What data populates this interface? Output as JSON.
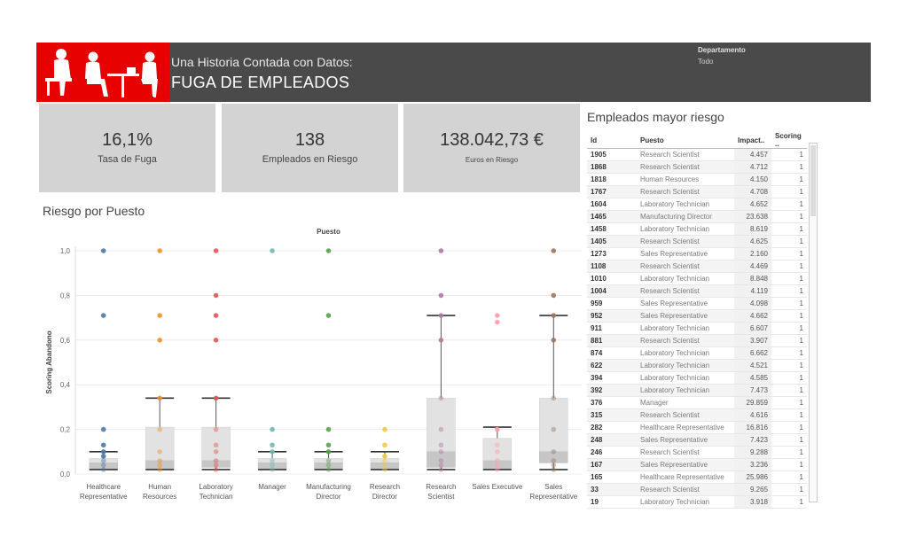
{
  "header": {
    "subtitle": "Una Historia Contada con Datos:",
    "title": "FUGA DE EMPLEADOS",
    "filter_label": "Departamento",
    "filter_value": "Todo",
    "colors": {
      "logo_bg": "#e60000",
      "header_bg": "#4a4a4a"
    },
    "logo_icon": "office-people-icon"
  },
  "kpis": [
    {
      "value": "16,1%",
      "label": "Tasa de Fuga"
    },
    {
      "value": "138",
      "label": "Empleados en Riesgo"
    },
    {
      "value": "138.042,73 €",
      "label": "Euros en Riesgo"
    }
  ],
  "chart_title": "Riesgo por Puesto",
  "chart_data": {
    "type": "boxplot-jitter",
    "x_header": "Puesto",
    "ylabel": "Scoring Abandono",
    "ylim": [
      0,
      1
    ],
    "yticks": [
      "0,0",
      "0,2",
      "0,4",
      "0,6",
      "0,8",
      "1,0"
    ],
    "grid": true,
    "categories": [
      {
        "label": [
          "Healthcare",
          "Representative"
        ],
        "color": "#4e79a7",
        "box": {
          "min": 0.02,
          "q1": 0.02,
          "median": 0.05,
          "q3": 0.07,
          "max": 0.1
        },
        "points": [
          1.0,
          0.71,
          0.2,
          0.13,
          0.1,
          0.08,
          0.06,
          0.04,
          0.02
        ]
      },
      {
        "label": [
          "Human",
          "Resources"
        ],
        "color": "#f28e2b",
        "box": {
          "min": 0.02,
          "q1": 0.02,
          "median": 0.06,
          "q3": 0.21,
          "max": 0.34
        },
        "points": [
          1.0,
          0.71,
          0.6,
          0.34,
          0.2,
          0.1,
          0.06,
          0.04,
          0.02
        ]
      },
      {
        "label": [
          "Laboratory",
          "Technician"
        ],
        "color": "#e15759",
        "box": {
          "min": 0.02,
          "q1": 0.03,
          "median": 0.06,
          "q3": 0.21,
          "max": 0.34
        },
        "points": [
          1.0,
          0.8,
          0.71,
          0.6,
          0.34,
          0.2,
          0.13,
          0.1,
          0.06,
          0.04,
          0.02
        ]
      },
      {
        "label": [
          "Manager",
          ""
        ],
        "color": "#76b7b2",
        "box": {
          "min": 0.02,
          "q1": 0.02,
          "median": 0.05,
          "q3": 0.07,
          "max": 0.1
        },
        "points": [
          1.0,
          0.2,
          0.13,
          0.1,
          0.06,
          0.04,
          0.02
        ]
      },
      {
        "label": [
          "Manufacturing",
          "Director"
        ],
        "color": "#59a14f",
        "box": {
          "min": 0.02,
          "q1": 0.02,
          "median": 0.05,
          "q3": 0.07,
          "max": 0.1
        },
        "points": [
          1.0,
          0.71,
          0.2,
          0.13,
          0.1,
          0.06,
          0.04,
          0.02
        ]
      },
      {
        "label": [
          "Research",
          "Director"
        ],
        "color": "#edc948",
        "box": {
          "min": 0.02,
          "q1": 0.02,
          "median": 0.05,
          "q3": 0.07,
          "max": 0.1
        },
        "points": [
          0.2,
          0.13,
          0.08,
          0.06,
          0.04,
          0.02
        ]
      },
      {
        "label": [
          "Research",
          "Scientist"
        ],
        "color": "#b07aa1",
        "box": {
          "min": 0.02,
          "q1": 0.03,
          "median": 0.1,
          "q3": 0.34,
          "max": 0.71
        },
        "points": [
          1.0,
          0.8,
          0.71,
          0.6,
          0.34,
          0.2,
          0.13,
          0.1,
          0.06,
          0.04,
          0.02
        ]
      },
      {
        "label": [
          "Sales Executive",
          ""
        ],
        "color": "#ff9da7",
        "box": {
          "min": 0.02,
          "q1": 0.02,
          "median": 0.06,
          "q3": 0.16,
          "max": 0.21
        },
        "points": [
          0.71,
          0.68,
          0.2,
          0.13,
          0.1,
          0.06,
          0.04,
          0.02
        ]
      },
      {
        "label": [
          "Sales",
          "Representative"
        ],
        "color": "#9c755f",
        "box": {
          "min": 0.02,
          "q1": 0.05,
          "median": 0.1,
          "q3": 0.34,
          "max": 0.71
        },
        "points": [
          1.0,
          0.8,
          0.71,
          0.6,
          0.34,
          0.2,
          0.1,
          0.06,
          0.04,
          0.02
        ]
      }
    ]
  },
  "table": {
    "title": "Empleados mayor riesgo",
    "columns": [
      "Id",
      "Puesto",
      "Impact..",
      "Scoring .."
    ],
    "rows": [
      [
        "1905",
        "Research Scientist",
        "4.457",
        "1"
      ],
      [
        "1868",
        "Research Scientist",
        "4.712",
        "1"
      ],
      [
        "1818",
        "Human Resources",
        "4.150",
        "1"
      ],
      [
        "1767",
        "Research Scientist",
        "4.708",
        "1"
      ],
      [
        "1604",
        "Laboratory Technician",
        "4.652",
        "1"
      ],
      [
        "1465",
        "Manufacturing Director",
        "23.638",
        "1"
      ],
      [
        "1458",
        "Laboratory Technician",
        "8.619",
        "1"
      ],
      [
        "1405",
        "Research Scientist",
        "4.625",
        "1"
      ],
      [
        "1273",
        "Sales Representative",
        "2.160",
        "1"
      ],
      [
        "1108",
        "Research Scientist",
        "4.469",
        "1"
      ],
      [
        "1010",
        "Laboratory Technician",
        "8.848",
        "1"
      ],
      [
        "1004",
        "Research Scientist",
        "4.119",
        "1"
      ],
      [
        "959",
        "Sales Representative",
        "4.098",
        "1"
      ],
      [
        "952",
        "Sales Representative",
        "4.662",
        "1"
      ],
      [
        "911",
        "Laboratory Technician",
        "6.607",
        "1"
      ],
      [
        "881",
        "Research Scientist",
        "3.907",
        "1"
      ],
      [
        "874",
        "Laboratory Technician",
        "6.662",
        "1"
      ],
      [
        "622",
        "Laboratory Technician",
        "4.521",
        "1"
      ],
      [
        "394",
        "Laboratory Technician",
        "4.585",
        "1"
      ],
      [
        "392",
        "Laboratory Technician",
        "7.473",
        "1"
      ],
      [
        "376",
        "Manager",
        "29.859",
        "1"
      ],
      [
        "315",
        "Research Scientist",
        "4.616",
        "1"
      ],
      [
        "282",
        "Healthcare Representative",
        "16.816",
        "1"
      ],
      [
        "248",
        "Sales Representative",
        "7.423",
        "1"
      ],
      [
        "246",
        "Research Scientist",
        "9.288",
        "1"
      ],
      [
        "167",
        "Sales Representative",
        "3.236",
        "1"
      ],
      [
        "165",
        "Healthcare Representative",
        "25.986",
        "1"
      ],
      [
        "33",
        "Research Scientist",
        "9.265",
        "1"
      ],
      [
        "19",
        "Laboratory Technician",
        "3.918",
        "1"
      ]
    ]
  }
}
